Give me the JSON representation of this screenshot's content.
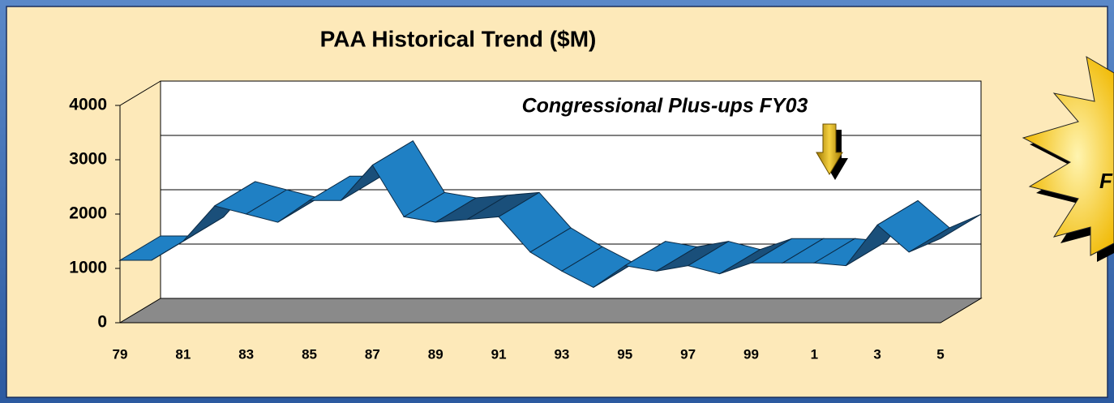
{
  "chart_data": {
    "type": "ribbon",
    "title": "PAA Historical Trend  ($M)",
    "annotation": "Congressional Plus-ups FY03",
    "callout_text": "F",
    "categories": [
      "79",
      null,
      "81",
      null,
      "83",
      null,
      "85",
      null,
      "87",
      null,
      "89",
      null,
      "91",
      null,
      "93",
      null,
      "95",
      null,
      "97",
      null,
      "99",
      null,
      "1",
      null,
      "3",
      null,
      "5"
    ],
    "values": [
      1150,
      1150,
      1500,
      2150,
      2000,
      1850,
      2250,
      2250,
      2900,
      1950,
      1850,
      1900,
      1950,
      1300,
      950,
      650,
      1050,
      950,
      1050,
      900,
      1100,
      1100,
      1100,
      1050,
      1800,
      1300,
      1550
    ],
    "color": "#1f80c4",
    "ylim": [
      0,
      4000
    ],
    "yticks": [
      0,
      1000,
      2000,
      3000,
      4000
    ],
    "grid": true
  }
}
